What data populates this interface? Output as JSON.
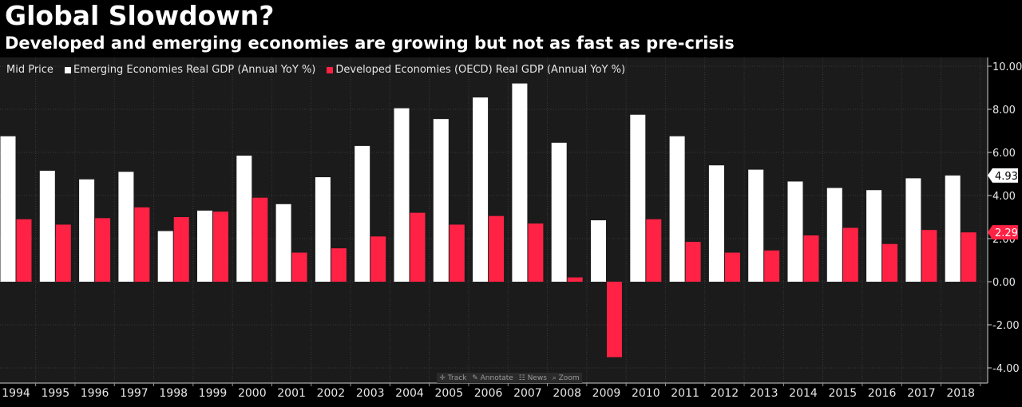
{
  "header": {
    "title": "Global Slowdown?",
    "subtitle": "Developed and emerging economies are growing but not as fast as pre-crisis"
  },
  "legend": {
    "price_label": "Mid Price",
    "series": [
      {
        "name": "Emerging Economies Real GDP (Annual YoY %)",
        "color": "#ffffff"
      },
      {
        "name": "Developed Economies (OECD) Real GDP (Annual YoY %)",
        "color": "#ff2244"
      }
    ]
  },
  "toolbar": {
    "track": "Track",
    "annotate": "Annotate",
    "news": "News",
    "zoom": "Zoom"
  },
  "colors": {
    "background": "#000000",
    "plot_background": "#1b1b1b",
    "grid": "#3a3a3a",
    "emerging": "#ffffff",
    "developed": "#ff2244"
  },
  "chart_data": {
    "type": "bar",
    "categories": [
      "1994",
      "1995",
      "1996",
      "1997",
      "1998",
      "1999",
      "2000",
      "2001",
      "2002",
      "2003",
      "2004",
      "2005",
      "2006",
      "2007",
      "2008",
      "2009",
      "2010",
      "2011",
      "2012",
      "2013",
      "2014",
      "2015",
      "2016",
      "2017",
      "2018"
    ],
    "series": [
      {
        "name": "Emerging Economies Real GDP (Annual YoY %)",
        "values": [
          6.75,
          5.15,
          4.75,
          5.1,
          2.35,
          3.3,
          5.85,
          3.6,
          4.85,
          6.3,
          8.05,
          7.55,
          8.55,
          9.2,
          6.45,
          2.85,
          7.75,
          6.75,
          5.4,
          5.2,
          4.65,
          4.35,
          4.25,
          4.8,
          4.93
        ]
      },
      {
        "name": "Developed Economies (OECD) Real GDP (Annual YoY %)",
        "values": [
          2.9,
          2.65,
          2.95,
          3.45,
          3.0,
          3.25,
          3.9,
          1.35,
          1.55,
          2.1,
          3.2,
          2.65,
          3.05,
          2.7,
          0.2,
          -3.5,
          2.9,
          1.85,
          1.35,
          1.45,
          2.15,
          2.5,
          1.75,
          2.4,
          2.29
        ]
      }
    ],
    "yticks": [
      "10.00",
      "8.00",
      "6.00",
      "4.00",
      "2.00",
      "0.00",
      "-2.00",
      "-4.00"
    ],
    "ylim": [
      -4.4,
      10.2
    ],
    "last_value_labels": [
      "4.93",
      "2.29"
    ],
    "grid": true,
    "legend_position": "top-left",
    "y_axis_side": "right"
  }
}
